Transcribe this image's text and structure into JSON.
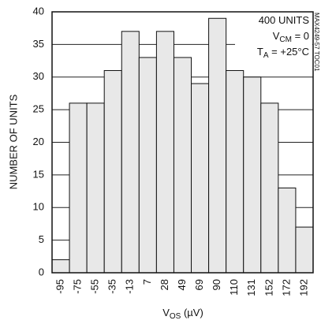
{
  "chart_data": {
    "type": "bar",
    "ylabel": "NUMBER OF UNITS",
    "xlabel": [
      "V",
      "OS",
      " (µV)"
    ],
    "categories": [
      "-95",
      "-75",
      "-55",
      "-35",
      "-13",
      "7",
      "28",
      "49",
      "69",
      "90",
      "110",
      "131",
      "152",
      "172",
      "192"
    ],
    "values": [
      2,
      26,
      26,
      31,
      37,
      33,
      37,
      33,
      29,
      39,
      31,
      30,
      26,
      13,
      7
    ],
    "color": "#e8e8e8",
    "ylim": [
      0,
      40
    ],
    "yticks": [
      0,
      5,
      10,
      15,
      20,
      25,
      30,
      35,
      40
    ],
    "grid": true,
    "annotations": [
      [
        "400 UNITS"
      ],
      [
        "V",
        "CM",
        " = 0"
      ],
      [
        "T",
        "A",
        " = +25°C"
      ]
    ],
    "figure_id": "MAX4249-57 TOC01"
  }
}
